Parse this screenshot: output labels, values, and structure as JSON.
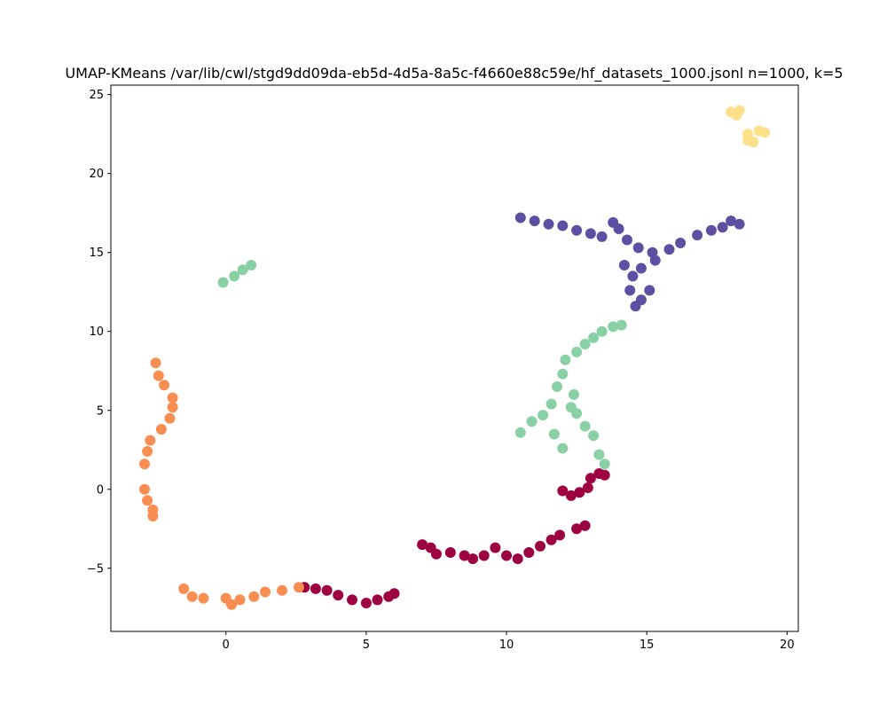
{
  "chart_data": {
    "type": "scatter",
    "title": "UMAP-KMeans /var/lib/cwl/stgd9dd09da-eb5d-4d5a-8a5c-f4660e88c59e/hf_datasets_1000.jsonl n=1000, k=5",
    "xlabel": "",
    "ylabel": "",
    "xlim": [
      -4.1,
      20.4
    ],
    "ylim": [
      -9.0,
      25.6
    ],
    "xticks": [
      0,
      5,
      10,
      15,
      20
    ],
    "yticks": [
      -5,
      0,
      5,
      10,
      15,
      20,
      25
    ],
    "xtick_labels": [
      "0",
      "5",
      "10",
      "15",
      "20"
    ],
    "ytick_labels": [
      "−5",
      "0",
      "5",
      "10",
      "15",
      "20",
      "25"
    ],
    "grid": false,
    "legend": "none",
    "clusters": [
      {
        "color": "#9e0142",
        "points": [
          [
            2.8,
            -6.2
          ],
          [
            3.2,
            -6.3
          ],
          [
            3.6,
            -6.4
          ],
          [
            4.0,
            -6.7
          ],
          [
            4.5,
            -7.0
          ],
          [
            5.0,
            -7.2
          ],
          [
            5.4,
            -7.0
          ],
          [
            5.8,
            -6.8
          ],
          [
            6.0,
            -6.6
          ],
          [
            7.0,
            -3.5
          ],
          [
            7.3,
            -3.7
          ],
          [
            7.5,
            -4.1
          ],
          [
            8.0,
            -4.0
          ],
          [
            8.5,
            -4.2
          ],
          [
            8.8,
            -4.4
          ],
          [
            9.2,
            -4.2
          ],
          [
            9.6,
            -3.7
          ],
          [
            10.0,
            -4.2
          ],
          [
            10.4,
            -4.4
          ],
          [
            10.8,
            -4.0
          ],
          [
            11.2,
            -3.6
          ],
          [
            11.6,
            -3.2
          ],
          [
            11.9,
            -2.9
          ],
          [
            12.0,
            -0.1
          ],
          [
            12.3,
            -0.4
          ],
          [
            12.6,
            -0.2
          ],
          [
            12.9,
            0.1
          ],
          [
            13.0,
            0.7
          ],
          [
            13.3,
            1.0
          ],
          [
            13.5,
            0.9
          ],
          [
            12.8,
            -2.3
          ],
          [
            12.5,
            -2.5
          ]
        ]
      },
      {
        "color": "#f98e52",
        "points": [
          [
            -2.5,
            8.0
          ],
          [
            -2.4,
            7.2
          ],
          [
            -2.2,
            6.6
          ],
          [
            -1.9,
            5.8
          ],
          [
            -1.9,
            5.2
          ],
          [
            -2.0,
            4.5
          ],
          [
            -2.3,
            3.8
          ],
          [
            -2.7,
            3.1
          ],
          [
            -2.8,
            2.4
          ],
          [
            -2.9,
            1.6
          ],
          [
            -2.9,
            0.0
          ],
          [
            -2.8,
            -0.7
          ],
          [
            -2.6,
            -1.3
          ],
          [
            -2.6,
            -1.7
          ],
          [
            -1.5,
            -6.3
          ],
          [
            -1.2,
            -6.8
          ],
          [
            -0.8,
            -6.9
          ],
          [
            0.0,
            -6.9
          ],
          [
            0.2,
            -7.3
          ],
          [
            0.5,
            -7.0
          ],
          [
            1.0,
            -6.8
          ],
          [
            1.4,
            -6.5
          ],
          [
            2.0,
            -6.4
          ],
          [
            2.6,
            -6.2
          ]
        ]
      },
      {
        "color": "#fee08b",
        "points": [
          [
            18.0,
            23.9
          ],
          [
            18.3,
            24.0
          ],
          [
            18.2,
            23.7
          ],
          [
            18.6,
            22.5
          ],
          [
            18.8,
            22.0
          ],
          [
            19.0,
            22.7
          ],
          [
            19.2,
            22.6
          ],
          [
            18.6,
            22.1
          ]
        ]
      },
      {
        "color": "#89d0a4",
        "points": [
          [
            -0.1,
            13.1
          ],
          [
            0.3,
            13.5
          ],
          [
            0.6,
            13.9
          ],
          [
            0.9,
            14.2
          ],
          [
            10.5,
            3.6
          ],
          [
            10.9,
            4.3
          ],
          [
            11.3,
            4.7
          ],
          [
            11.7,
            3.5
          ],
          [
            12.0,
            2.6
          ],
          [
            12.3,
            5.2
          ],
          [
            12.5,
            4.8
          ],
          [
            12.8,
            4.0
          ],
          [
            13.1,
            3.4
          ],
          [
            13.3,
            2.2
          ],
          [
            13.5,
            1.6
          ],
          [
            11.8,
            6.5
          ],
          [
            12.0,
            7.3
          ],
          [
            12.1,
            8.2
          ],
          [
            12.5,
            8.7
          ],
          [
            12.8,
            9.2
          ],
          [
            13.1,
            9.6
          ],
          [
            13.4,
            10.0
          ],
          [
            13.8,
            10.3
          ],
          [
            14.1,
            10.4
          ],
          [
            12.4,
            6.0
          ],
          [
            11.6,
            5.4
          ]
        ]
      },
      {
        "color": "#5e4fa2",
        "points": [
          [
            10.5,
            17.2
          ],
          [
            11.0,
            17.0
          ],
          [
            11.5,
            16.8
          ],
          [
            12.0,
            16.7
          ],
          [
            12.5,
            16.4
          ],
          [
            13.0,
            16.2
          ],
          [
            13.4,
            16.0
          ],
          [
            13.8,
            16.9
          ],
          [
            14.0,
            16.5
          ],
          [
            14.3,
            15.8
          ],
          [
            14.7,
            15.3
          ],
          [
            15.2,
            15.0
          ],
          [
            15.8,
            15.2
          ],
          [
            16.2,
            15.6
          ],
          [
            16.8,
            16.1
          ],
          [
            17.3,
            16.4
          ],
          [
            17.7,
            16.6
          ],
          [
            18.0,
            17.0
          ],
          [
            18.3,
            16.8
          ],
          [
            14.2,
            14.2
          ],
          [
            14.5,
            13.5
          ],
          [
            14.4,
            12.6
          ],
          [
            14.8,
            12.0
          ],
          [
            15.1,
            12.6
          ],
          [
            14.6,
            11.6
          ],
          [
            14.8,
            14.0
          ],
          [
            15.3,
            14.5
          ]
        ]
      }
    ]
  }
}
